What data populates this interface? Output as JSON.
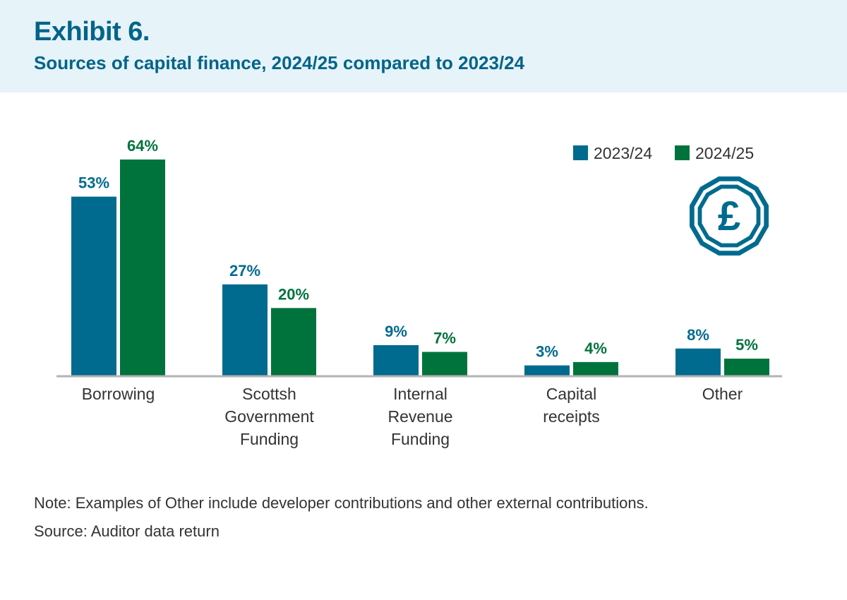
{
  "header": {
    "exhibit": "Exhibit 6.",
    "subtitle": "Sources of capital finance, 2024/25 compared to 2023/24"
  },
  "footer": {
    "note": "Note: Examples of Other include developer contributions and other external contributions.",
    "source": "Source: Auditor data return"
  },
  "icon": "pound-coin-icon",
  "colors": {
    "series_2023": "#006b8f",
    "series_2024": "#00733c",
    "axis": "#b3b3b3",
    "text": "#333333"
  },
  "chart_data": {
    "type": "bar",
    "categories": [
      [
        "Borrowing"
      ],
      [
        "Scottsh",
        "Government",
        "Funding"
      ],
      [
        "Internal",
        "Revenue",
        "Funding"
      ],
      [
        "Capital",
        "receipts"
      ],
      [
        "Other"
      ]
    ],
    "series": [
      {
        "name": "2023/24",
        "values": [
          53,
          27,
          9,
          3,
          8
        ],
        "labels": [
          "53%",
          "27%",
          "9%",
          "3%",
          "8%"
        ]
      },
      {
        "name": "2024/25",
        "values": [
          64,
          20,
          7,
          4,
          5
        ],
        "labels": [
          "64%",
          "20%",
          "7%",
          "4%",
          "5%"
        ]
      }
    ],
    "ylim": [
      0,
      64
    ],
    "legend": "top-right",
    "grid": false
  }
}
